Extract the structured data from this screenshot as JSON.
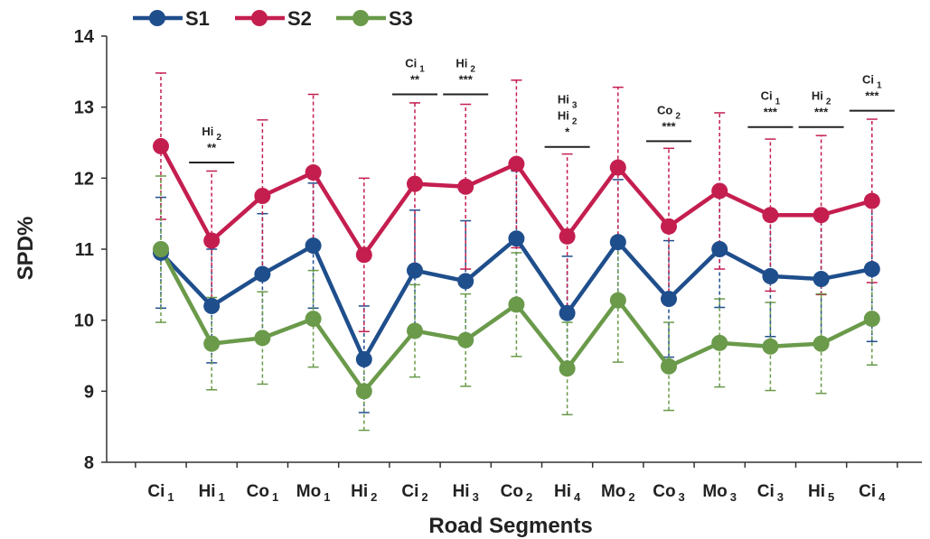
{
  "chart_data": {
    "type": "line",
    "title": "",
    "xlabel": "Road Segments",
    "ylabel": "SPD%",
    "ylim": [
      8,
      14
    ],
    "yticks": [
      8,
      9,
      10,
      11,
      12,
      13,
      14
    ],
    "grid": false,
    "legend_position": "top-left",
    "categories": [
      {
        "base": "Ci",
        "sub": "1"
      },
      {
        "base": "Hi",
        "sub": "1"
      },
      {
        "base": "Co",
        "sub": "1"
      },
      {
        "base": "Mo",
        "sub": "1"
      },
      {
        "base": "Hi",
        "sub": "2"
      },
      {
        "base": "Ci",
        "sub": "2"
      },
      {
        "base": "Hi",
        "sub": "3"
      },
      {
        "base": "Co",
        "sub": "2"
      },
      {
        "base": "Hi",
        "sub": "4"
      },
      {
        "base": "Mo",
        "sub": "2"
      },
      {
        "base": "Co",
        "sub": "3"
      },
      {
        "base": "Mo",
        "sub": "3"
      },
      {
        "base": "Ci",
        "sub": "3"
      },
      {
        "base": "Hi",
        "sub": "5"
      },
      {
        "base": "Ci",
        "sub": "4"
      }
    ],
    "series": [
      {
        "name": "S1",
        "color": "#1f4e8c",
        "values": [
          10.95,
          10.2,
          10.65,
          11.05,
          9.45,
          10.7,
          10.55,
          11.15,
          10.1,
          11.1,
          10.3,
          11.0,
          10.62,
          10.58,
          10.72
        ],
        "error": [
          0.78,
          0.8,
          0.85,
          0.88,
          0.75,
          0.85,
          0.85,
          0.95,
          0.8,
          0.88,
          0.82,
          0.82,
          0.85,
          0.85,
          1.02
        ]
      },
      {
        "name": "S2",
        "color": "#c41e4f",
        "values": [
          12.45,
          11.12,
          11.75,
          12.08,
          10.92,
          11.92,
          11.88,
          12.2,
          11.18,
          12.15,
          11.32,
          11.82,
          11.48,
          11.48,
          11.68
        ],
        "error": [
          1.03,
          0.98,
          1.07,
          1.1,
          1.08,
          1.14,
          1.16,
          1.18,
          1.16,
          1.13,
          1.1,
          1.1,
          1.07,
          1.12,
          1.15
        ]
      },
      {
        "name": "S3",
        "color": "#6a9a4a",
        "values": [
          11.0,
          9.67,
          9.75,
          10.02,
          9.0,
          9.85,
          9.72,
          10.22,
          9.32,
          10.28,
          9.35,
          9.68,
          9.63,
          9.67,
          10.02
        ],
        "error": [
          1.03,
          0.65,
          0.65,
          0.68,
          0.55,
          0.65,
          0.65,
          0.73,
          0.65,
          0.87,
          0.62,
          0.62,
          0.62,
          0.7,
          0.65
        ]
      }
    ],
    "annotations": [
      {
        "between": [
          1,
          1
        ],
        "lines": [
          [
            "Hi",
            "2"
          ],
          [
            "**",
            ""
          ]
        ],
        "bar_y": 12.22
      },
      {
        "between": [
          5,
          5
        ],
        "lines": [
          [
            "Ci",
            "1"
          ],
          [
            "**",
            ""
          ]
        ],
        "bar_y": 13.18
      },
      {
        "between": [
          6,
          6
        ],
        "lines": [
          [
            "Hi",
            "2"
          ],
          [
            "***",
            ""
          ]
        ],
        "bar_y": 13.18
      },
      {
        "between": [
          8,
          8
        ],
        "lines": [
          [
            "Hi",
            "3"
          ],
          [
            "Hi",
            "2"
          ],
          [
            "*",
            ""
          ]
        ],
        "bar_y": 12.44
      },
      {
        "between": [
          10,
          10
        ],
        "lines": [
          [
            "Co",
            "2"
          ],
          [
            "***",
            ""
          ]
        ],
        "bar_y": 12.52
      },
      {
        "between": [
          12,
          12
        ],
        "lines": [
          [
            "Ci",
            "1"
          ],
          [
            "***",
            ""
          ]
        ],
        "bar_y": 12.72
      },
      {
        "between": [
          13,
          13
        ],
        "lines": [
          [
            "Hi",
            "2"
          ],
          [
            "***",
            ""
          ]
        ],
        "bar_y": 12.72
      },
      {
        "between": [
          14,
          14
        ],
        "lines": [
          [
            "Ci",
            "1"
          ],
          [
            "***",
            ""
          ]
        ],
        "bar_y": 12.95
      }
    ]
  }
}
